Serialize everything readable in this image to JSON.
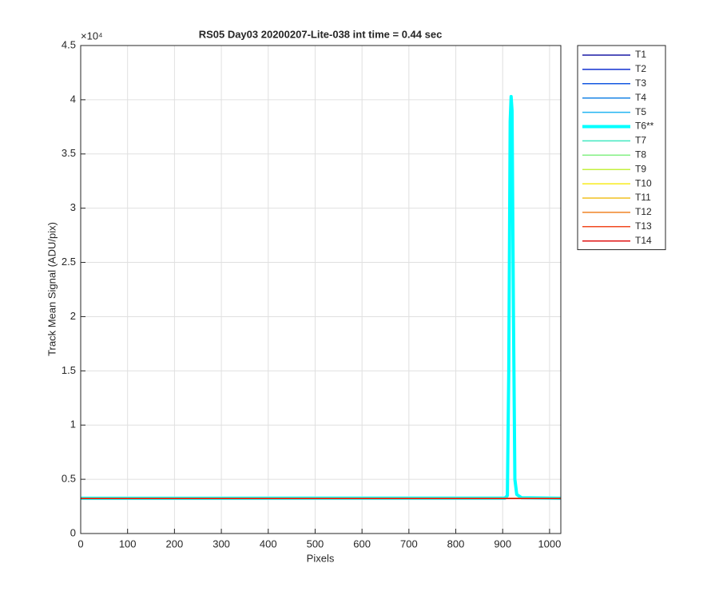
{
  "chart_data": {
    "type": "line",
    "title": "RS05 Day03 20200207-Lite-038 int time = 0.44 sec",
    "xlabel": "Pixels",
    "ylabel": "Track Mean Signal (ADU/pix)",
    "y_multiplier": "×10⁴",
    "xlim": [
      0,
      1024
    ],
    "ylim": [
      0,
      45000
    ],
    "xticks": [
      0,
      100,
      200,
      300,
      400,
      500,
      600,
      700,
      800,
      900,
      1000
    ],
    "yticks": [
      0,
      {
        "value": 5000,
        "label": "0.5"
      },
      {
        "value": 10000,
        "label": "1"
      },
      {
        "value": 15000,
        "label": "1.5"
      },
      {
        "value": 20000,
        "label": "2"
      },
      {
        "value": 25000,
        "label": "2.5"
      },
      {
        "value": 30000,
        "label": "3"
      },
      {
        "value": 35000,
        "label": "3.5"
      },
      {
        "value": 40000,
        "label": "4"
      },
      {
        "value": 45000,
        "label": "4.5"
      }
    ],
    "grid": true,
    "legend_position": "outside-right",
    "x": [
      0,
      905,
      910,
      913,
      916,
      918,
      920,
      923,
      926,
      930,
      940,
      1024
    ],
    "series": [
      {
        "name": "T1",
        "color": "#1a1aa6",
        "line_width": 1.5,
        "values": [
          3230,
          3230,
          3230,
          3230,
          3230,
          3230,
          3230,
          3230,
          3230,
          3230,
          3230,
          3230
        ]
      },
      {
        "name": "T2",
        "color": "#1030d0",
        "line_width": 1.5,
        "values": [
          3235,
          3235,
          3235,
          3235,
          3235,
          3235,
          3235,
          3235,
          3235,
          3235,
          3235,
          3235
        ]
      },
      {
        "name": "T3",
        "color": "#1458e0",
        "line_width": 1.5,
        "values": [
          3240,
          3240,
          3240,
          3240,
          3240,
          3240,
          3240,
          3240,
          3240,
          3240,
          3240,
          3240
        ]
      },
      {
        "name": "T4",
        "color": "#1a84e6",
        "line_width": 1.5,
        "values": [
          3240,
          3240,
          3240,
          3240,
          3240,
          3240,
          3240,
          3240,
          3240,
          3240,
          3240,
          3240
        ]
      },
      {
        "name": "T5",
        "color": "#22b4f2",
        "line_width": 1.5,
        "values": [
          3245,
          3245,
          3245,
          3245,
          3245,
          3245,
          3245,
          3245,
          3245,
          3245,
          3245,
          3245
        ]
      },
      {
        "name": "T6**",
        "color": "#00ffff",
        "line_width": 4,
        "values": [
          3250,
          3260,
          3500,
          15000,
          38000,
          40300,
          39000,
          20000,
          5000,
          3600,
          3300,
          3250
        ]
      },
      {
        "name": "T7",
        "color": "#40e8c0",
        "line_width": 1.5,
        "values": [
          3245,
          3245,
          3245,
          3245,
          3245,
          3245,
          3245,
          3245,
          3245,
          3245,
          3245,
          3245
        ]
      },
      {
        "name": "T8",
        "color": "#84f084",
        "line_width": 1.5,
        "values": [
          3240,
          3240,
          3240,
          3240,
          3240,
          3240,
          3240,
          3240,
          3240,
          3240,
          3240,
          3240
        ]
      },
      {
        "name": "T9",
        "color": "#c4f040",
        "line_width": 1.5,
        "values": [
          3240,
          3240,
          3240,
          3240,
          3240,
          3240,
          3240,
          3240,
          3240,
          3240,
          3240,
          3240
        ]
      },
      {
        "name": "T10",
        "color": "#f8ec1c",
        "line_width": 1.5,
        "values": [
          3235,
          3235,
          3235,
          3235,
          3235,
          3235,
          3235,
          3235,
          3235,
          3235,
          3235,
          3235
        ]
      },
      {
        "name": "T11",
        "color": "#f0c020",
        "line_width": 1.5,
        "values": [
          3235,
          3235,
          3235,
          3235,
          3235,
          3235,
          3235,
          3235,
          3235,
          3235,
          3235,
          3235
        ]
      },
      {
        "name": "T12",
        "color": "#f08424",
        "line_width": 1.5,
        "values": [
          3230,
          3230,
          3230,
          3230,
          3230,
          3230,
          3230,
          3230,
          3230,
          3230,
          3230,
          3230
        ]
      },
      {
        "name": "T13",
        "color": "#f04a20",
        "line_width": 1.5,
        "values": [
          3230,
          3230,
          3230,
          3230,
          3230,
          3230,
          3230,
          3230,
          3230,
          3230,
          3230,
          3230
        ]
      },
      {
        "name": "T14",
        "color": "#e01414",
        "line_width": 1.5,
        "values": [
          3225,
          3225,
          3225,
          3225,
          3225,
          3225,
          3225,
          3225,
          3225,
          3225,
          3225,
          3225
        ]
      }
    ]
  }
}
